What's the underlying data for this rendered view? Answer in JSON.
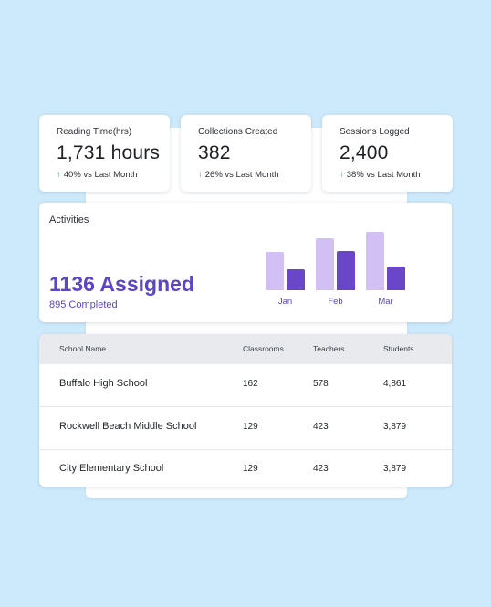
{
  "stats": [
    {
      "label": "Reading Time(hrs)",
      "value": "1,731 hours",
      "delta": "40% vs Last Month"
    },
    {
      "label": "Collections Created",
      "value": "382",
      "delta": "26% vs Last Month"
    },
    {
      "label": "Sessions Logged",
      "value": "2,400",
      "delta": "38% vs Last Month"
    }
  ],
  "activities": {
    "title": "Activities",
    "assigned": "1136 Assigned",
    "completed": "895 Completed"
  },
  "chart_data": {
    "type": "bar",
    "categories": [
      "Jan",
      "Feb",
      "Mar"
    ],
    "series": [
      {
        "values": [
          42,
          57,
          64
        ],
        "color": "#d2c0f5"
      },
      {
        "values": [
          23,
          43,
          26
        ],
        "color": "#6a47c9"
      }
    ],
    "ylim": [
      0,
      64
    ]
  },
  "table": {
    "headers": [
      "School Name",
      "Classrooms",
      "Teachers",
      "Students"
    ],
    "rows": [
      [
        "Buffalo High School",
        "162",
        "578",
        "4,861"
      ],
      [
        "Rockwell Beach Middle School",
        "129",
        "423",
        "3,879"
      ],
      [
        "City Elementary School",
        "129",
        "423",
        "3,879"
      ]
    ]
  },
  "colors": {
    "background": "#cdeafc",
    "accent": "#5c45c6",
    "positive": "#2f8a5b"
  }
}
